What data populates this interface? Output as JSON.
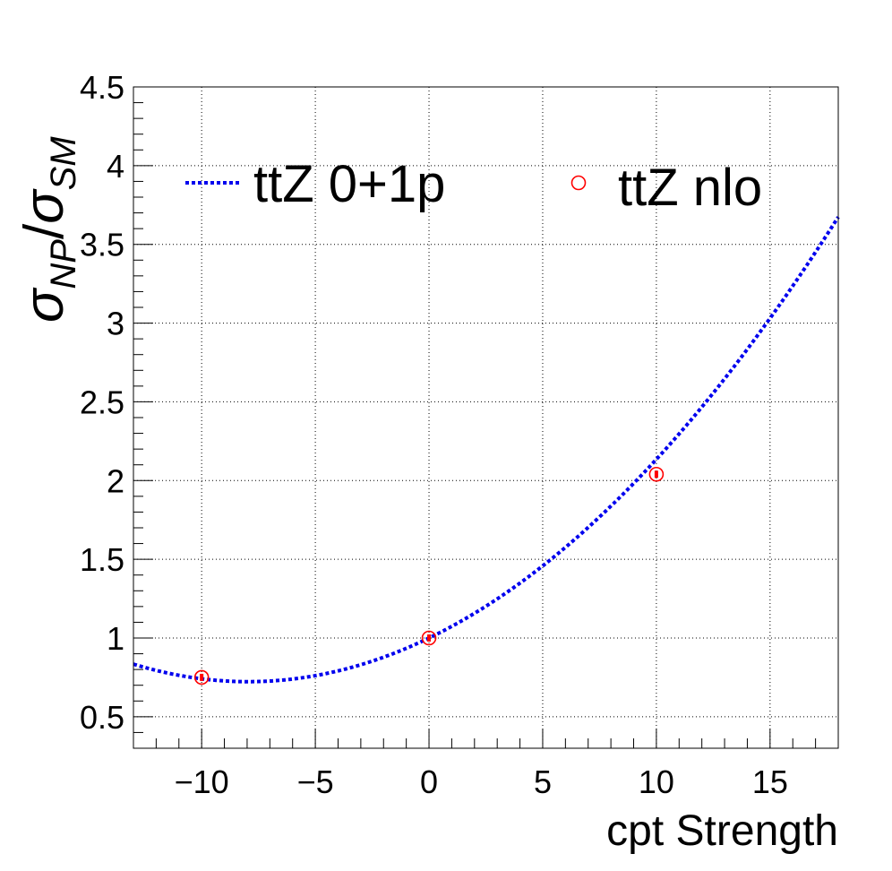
{
  "chart_data": {
    "type": "line",
    "xlabel": "cpt Strength",
    "ylabel": {
      "main": "σ",
      "sub_np": "NP",
      "slash": "/",
      "main2": "σ",
      "sub_sm": "SM"
    },
    "xlim": [
      -13,
      18
    ],
    "ylim": [
      0.3,
      4.5
    ],
    "x_ticks": [
      -10,
      -5,
      0,
      5,
      10,
      15
    ],
    "x_tick_labels": [
      "−10",
      "−5",
      "0",
      "5",
      "10",
      "15"
    ],
    "y_ticks": [
      0.5,
      1,
      1.5,
      2,
      2.5,
      3,
      3.5,
      4,
      4.5
    ],
    "y_tick_labels": [
      "0.5",
      "1",
      "1.5",
      "2",
      "2.5",
      "3",
      "3.5",
      "4",
      "4.5"
    ],
    "grid": true,
    "legend_placement": "top",
    "series": [
      {
        "name": "ttZ 0+1p",
        "style": "dotted-line",
        "color": "#0000ee",
        "model": "quadratic",
        "coefficients": {
          "c0": 1.0,
          "c1": 0.0697,
          "c2": 0.00438
        },
        "x_range": [
          -13,
          18
        ]
      },
      {
        "name": "ttZ nlo",
        "style": "open-circle-markers",
        "color": "#ff0000",
        "x": [
          -10,
          0,
          10
        ],
        "y": [
          0.75,
          1.0,
          2.04
        ]
      }
    ]
  }
}
